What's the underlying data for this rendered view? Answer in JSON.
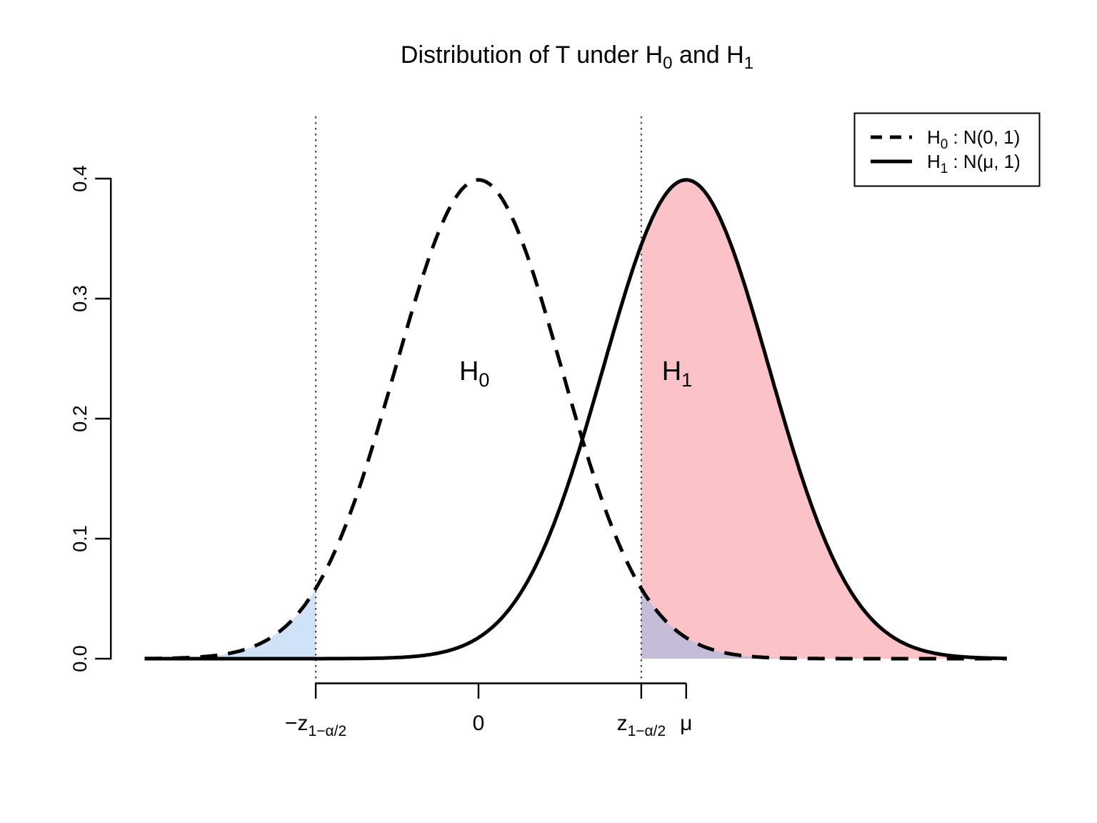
{
  "title": {
    "part1": "Distribution of T under H",
    "sub1": "0",
    "part2": " and H",
    "sub2": "1"
  },
  "legend": {
    "position": "top-right",
    "items": [
      {
        "style": "dashed",
        "base": "H",
        "sub": "0",
        "rest": ": N(0, 1)"
      },
      {
        "style": "solid",
        "base": "H",
        "sub": "1",
        "rest": ": N(μ, 1)"
      }
    ]
  },
  "chart_data": {
    "type": "line",
    "title": "Distribution of T under H0 and H1",
    "xlabel": "",
    "ylabel": "",
    "grid": false,
    "legend_position": "top-right",
    "x_domain": [
      -4.02,
      6.36
    ],
    "ylim": [
      0,
      0.4
    ],
    "y_ticks": [
      0.0,
      0.1,
      0.2,
      0.3,
      0.4
    ],
    "y_tick_labels": [
      "0.0",
      "0.1",
      "0.2",
      "0.3",
      "0.4"
    ],
    "curves": [
      {
        "name": "H0",
        "dist": "normal",
        "mean": 0,
        "sd": 1,
        "line": "dashed",
        "legend": "H0 : N(0, 1)"
      },
      {
        "name": "H1",
        "dist": "normal",
        "mean": 2.5,
        "sd": 1,
        "line": "solid",
        "legend": "H1 : N(μ, 1)"
      }
    ],
    "critical_values": [
      -1.96,
      1.96
    ],
    "x_ticks": [
      {
        "value": -1.96,
        "base": "−z",
        "sub": "1−α/2"
      },
      {
        "value": 0,
        "base": "0",
        "sub": ""
      },
      {
        "value": 1.96,
        "base": "z",
        "sub": "1−α/2"
      },
      {
        "value": 2.5,
        "base": "μ",
        "sub": ""
      }
    ],
    "annotations": [
      {
        "base": "H",
        "sub": "0",
        "x": -0.05,
        "y": 0.24
      },
      {
        "base": "H",
        "sub": "1",
        "x": 2.39,
        "y": 0.24
      }
    ],
    "regions": [
      {
        "name": "left-rejection-tail-h0",
        "curve": "H0",
        "from": -4.02,
        "to": -1.96,
        "color": "#CFE2F6"
      },
      {
        "name": "power-area-h1",
        "curve": "H1",
        "from": 1.96,
        "to": 6.36,
        "color": "#FBC3C7"
      },
      {
        "name": "overlap-right-tail-h0",
        "curve": "H0",
        "from": 1.96,
        "to": 6.36,
        "color": "#C5BCD8"
      }
    ],
    "colors": {
      "curve": "#000000",
      "cutoff_line": "#4A4A4A",
      "axis": "#000000",
      "background": "#FFFFFF"
    }
  }
}
